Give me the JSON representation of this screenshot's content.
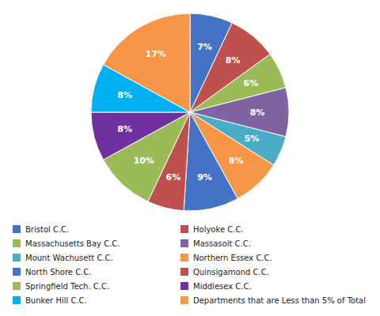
{
  "chart_data": {
    "type": "pie",
    "categories": [
      "Bristol C.C.",
      "Holyoke C.C.",
      "Massachusetts Bay C.C.",
      "Massasoit C.C.",
      "Mount Wachusett C.C.",
      "Northern Essex C.C.",
      "North Shore C.C.",
      "Quinsigamond C.C.",
      "Springfield Tech. C.C.",
      "Middlesex C.C.",
      "Bunker Hill C.C.",
      "Departments that are Less than 5% of Total"
    ],
    "values": [
      7,
      8,
      6,
      8,
      5,
      8,
      9,
      6,
      10,
      8,
      8,
      17
    ],
    "value_labels": [
      "7%",
      "8%",
      "6%",
      "8%",
      "5%",
      "8%",
      "9%",
      "6%",
      "10%",
      "8%",
      "8%",
      "17%"
    ],
    "colors": [
      "#4472C4",
      "#C0504D",
      "#9BBB59",
      "#8064A2",
      "#4BACC6",
      "#F79646",
      "#4472C4",
      "#C0504D",
      "#9BBB59",
      "#7030A0",
      "#00B0F0",
      "#F79646"
    ],
    "data_labels": true,
    "legend": "bottom"
  }
}
